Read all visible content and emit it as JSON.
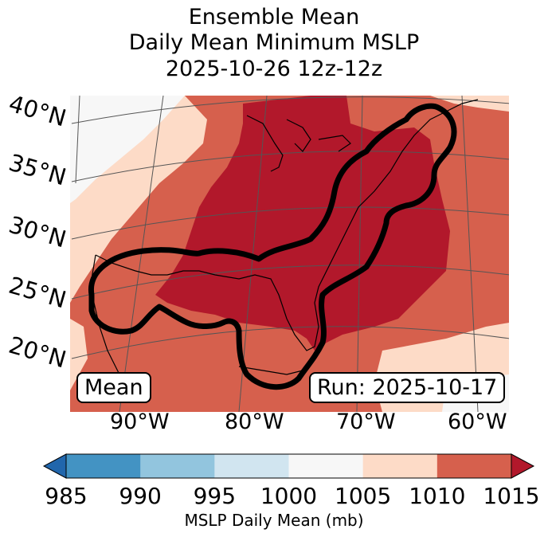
{
  "title": {
    "line1": "Ensemble Mean",
    "line2": "Daily Mean Minimum MSLP",
    "line3": "2025-10-26 12z-12z"
  },
  "map": {
    "lat_labels": [
      "40°N",
      "35°N",
      "30°N",
      "25°N",
      "20°N"
    ],
    "lon_labels": [
      "90°W",
      "80°W",
      "70°W",
      "60°W"
    ],
    "mean_box": "Mean",
    "run_box": "Run: 2025-10-17",
    "fill_colors": {
      "1015+": "#b2182b",
      "1010-1015": "#d6604d",
      "1005-1010": "#fddbc7",
      "1000-1005": "#f7f7f7"
    },
    "probability_contour_color": "#000000"
  },
  "colorbar": {
    "ticks": [
      "985",
      "990",
      "995",
      "1000",
      "1005",
      "1010",
      "1015"
    ],
    "colors": [
      "#2166ac",
      "#4393c3",
      "#92c5de",
      "#d1e5f0",
      "#f7f7f7",
      "#fddbc7",
      "#d6604d",
      "#b2182b"
    ],
    "label": "MSLP Daily Mean (mb)"
  }
}
